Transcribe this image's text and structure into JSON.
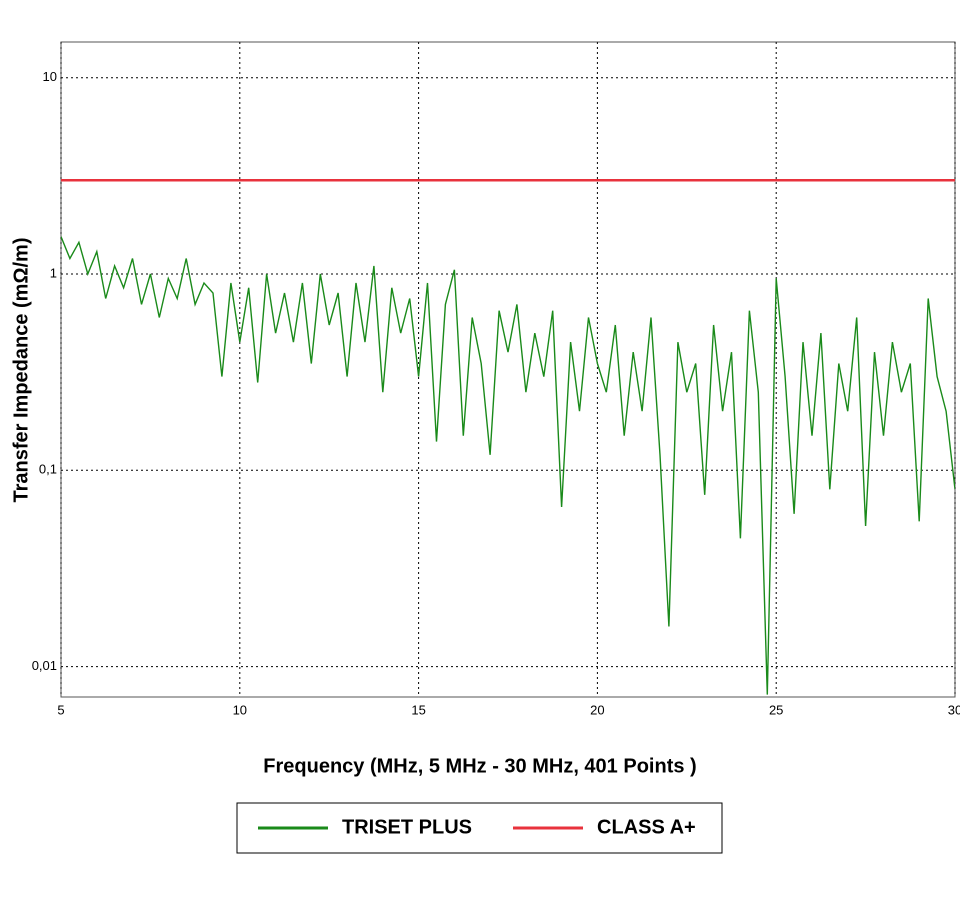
{
  "chart_data": {
    "type": "line",
    "y_label": "Transfer Impedance (mΩ/m)",
    "x_label": "Frequency (MHz, 5 MHz - 30 MHz, 401 Points )",
    "x": [
      5,
      5.25,
      5.5,
      5.75,
      6,
      6.25,
      6.5,
      6.75,
      7,
      7.25,
      7.5,
      7.75,
      8,
      8.25,
      8.5,
      8.75,
      9,
      9.25,
      9.5,
      9.75,
      10,
      10.25,
      10.5,
      10.75,
      11,
      11.25,
      11.5,
      11.75,
      12,
      12.25,
      12.5,
      12.75,
      13,
      13.25,
      13.5,
      13.75,
      14,
      14.25,
      14.5,
      14.75,
      15,
      15.25,
      15.5,
      15.75,
      16,
      16.25,
      16.5,
      16.75,
      17,
      17.25,
      17.5,
      17.75,
      18,
      18.25,
      18.5,
      18.75,
      19,
      19.25,
      19.5,
      19.75,
      20,
      20.25,
      20.5,
      20.75,
      21,
      21.25,
      21.5,
      21.75,
      22,
      22.25,
      22.5,
      22.75,
      23,
      23.25,
      23.5,
      23.75,
      24,
      24.25,
      24.5,
      24.75,
      25,
      25.25,
      25.5,
      25.75,
      26,
      26.25,
      26.5,
      26.75,
      27,
      27.25,
      27.5,
      27.75,
      28,
      28.25,
      28.5,
      28.75,
      29,
      29.25,
      29.5,
      29.75,
      30
    ],
    "series": [
      {
        "name": "TRISET PLUS",
        "color": "#1a8a1a",
        "values": [
          1.55,
          1.2,
          1.45,
          1.0,
          1.3,
          0.75,
          1.1,
          0.85,
          1.2,
          0.7,
          1.0,
          0.6,
          0.95,
          0.75,
          1.2,
          0.7,
          0.9,
          0.8,
          0.3,
          0.9,
          0.45,
          0.85,
          0.28,
          1.0,
          0.5,
          0.8,
          0.45,
          0.9,
          0.35,
          1.0,
          0.55,
          0.8,
          0.3,
          0.9,
          0.45,
          1.1,
          0.25,
          0.85,
          0.5,
          0.75,
          0.3,
          0.9,
          0.14,
          0.7,
          1.05,
          0.15,
          0.6,
          0.35,
          0.12,
          0.65,
          0.4,
          0.7,
          0.25,
          0.5,
          0.3,
          0.65,
          0.065,
          0.45,
          0.2,
          0.6,
          0.35,
          0.25,
          0.55,
          0.15,
          0.4,
          0.2,
          0.6,
          0.12,
          0.016,
          0.45,
          0.25,
          0.35,
          0.075,
          0.55,
          0.2,
          0.4,
          0.045,
          0.65,
          0.25,
          0.0072,
          0.95,
          0.3,
          0.06,
          0.45,
          0.15,
          0.5,
          0.08,
          0.35,
          0.2,
          0.6,
          0.052,
          0.4,
          0.15,
          0.45,
          0.25,
          0.35,
          0.055,
          0.75,
          0.3,
          0.2,
          0.08
        ]
      },
      {
        "name": "CLASS A+",
        "color": "#e8323c",
        "x": [
          5,
          30
        ],
        "values": [
          3,
          3
        ]
      }
    ],
    "xlim": [
      5,
      30
    ],
    "xticks": [
      5,
      10,
      15,
      20,
      25,
      30
    ],
    "ylim": [
      0.007,
      15.2
    ],
    "log_y": true,
    "yticks": [
      {
        "value": 0.01,
        "label": "0,01"
      },
      {
        "value": 0.1,
        "label": "0,1"
      },
      1,
      10
    ],
    "grid": true,
    "legend": "bottom"
  }
}
